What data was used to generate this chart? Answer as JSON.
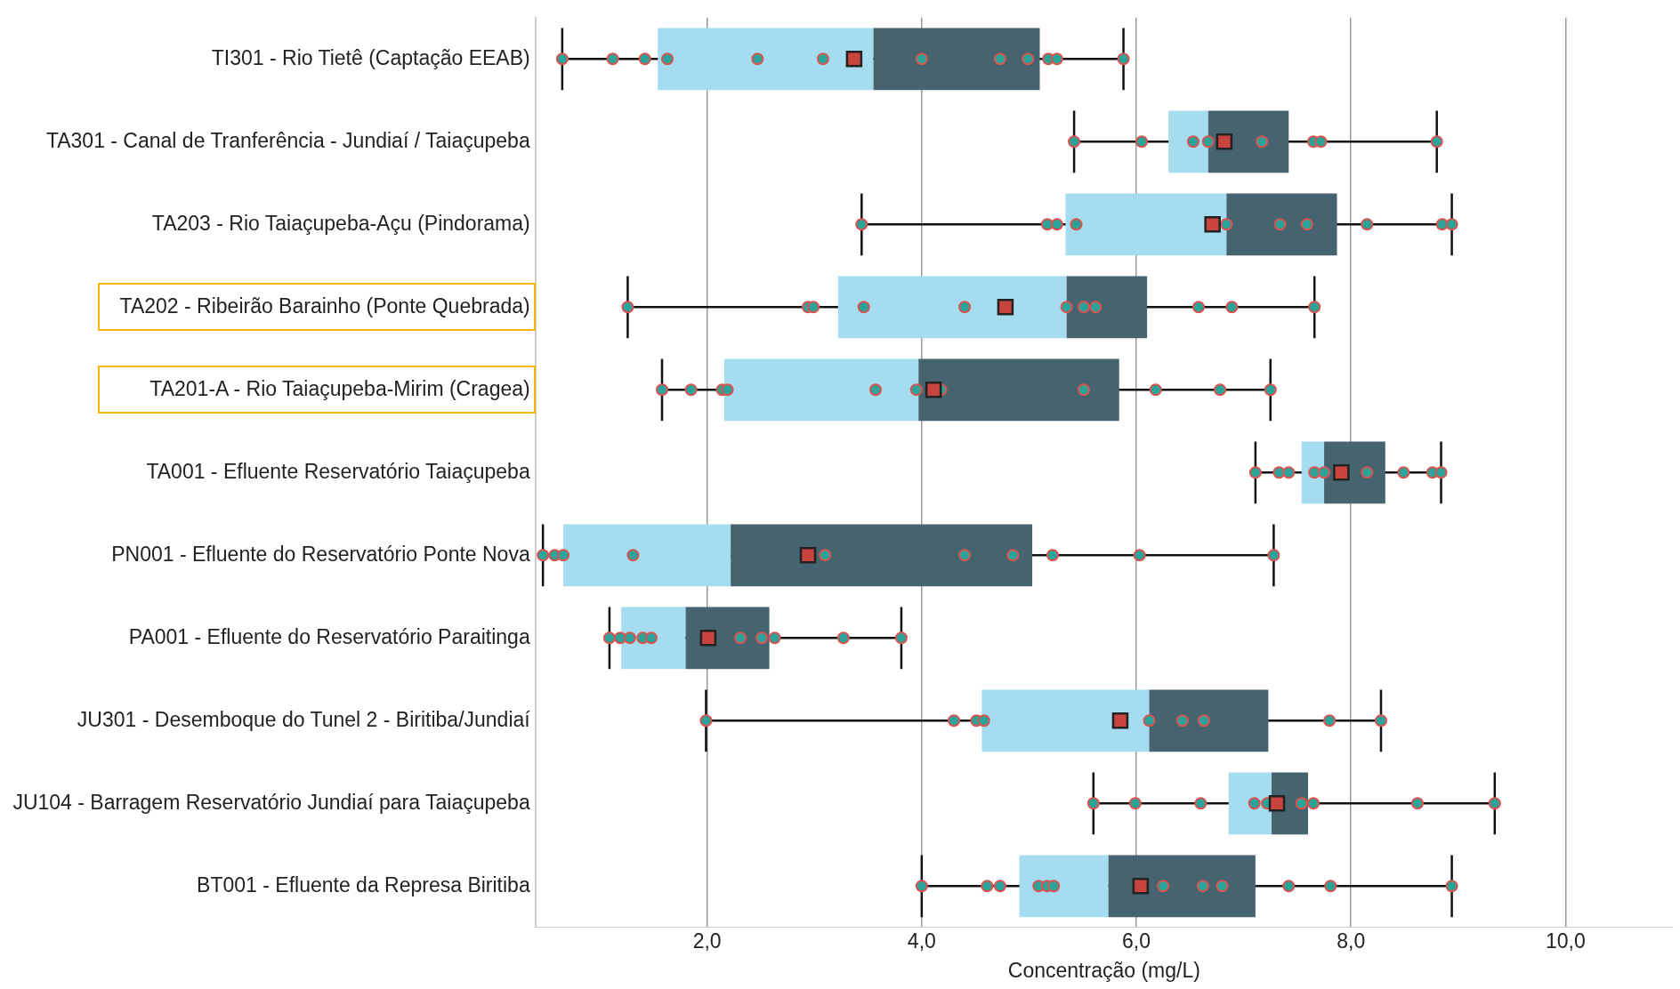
{
  "chart_data": {
    "type": "box",
    "orientation": "horizontal",
    "xlabel": "Concentração (mg/L)",
    "categories": [
      "TI301 - Rio Tietê (Captação EEAB)",
      "TA301 - Canal de Tranferência - Jundiaí / Taiaçupeba",
      "TA203 - Rio Taiaçupeba-Açu (Pindorama)",
      "TA202 - Ribeirão Barainho (Ponte Quebrada)",
      "TA201-A - Rio Taiaçupeba-Mirim (Cragea)",
      "TA001 - Efluente Reservatório Taiaçupeba",
      "PN001 - Efluente do Reservatório Ponte Nova",
      "PA001 - Efluente do Reservatório Paraitinga",
      "JU301 - Desemboque do Tunel 2 - Biritiba/Jundiaí",
      "JU104 - Barragem Reservatório Jundiaí para Taiaçupeba",
      "BT001 - Efluente da Represa Biritiba"
    ],
    "xlim": [
      0.4,
      11
    ],
    "xticks": [
      {
        "value": 2,
        "label": "2,0"
      },
      {
        "value": 4,
        "label": "4,0"
      },
      {
        "value": 6,
        "label": "6,0"
      },
      {
        "value": 8,
        "label": "8,0"
      },
      {
        "value": 10,
        "label": "10,0"
      }
    ],
    "grid": "x",
    "legend": false,
    "series": [
      {
        "type": "box",
        "color": "#a6dcef",
        "boxes": [
          {
            "low": 0.65,
            "q1": 1.54,
            "median": 3.55,
            "q3": 5.1,
            "high": 5.88,
            "mean": 3.37
          },
          {
            "low": 5.42,
            "q1": 6.3,
            "median": 6.67,
            "q3": 7.42,
            "high": 8.8,
            "mean": 6.82
          },
          {
            "low": 3.44,
            "q1": 5.34,
            "median": 6.84,
            "q3": 7.87,
            "high": 8.94,
            "mean": 6.71
          },
          {
            "low": 1.26,
            "q1": 3.22,
            "median": 5.35,
            "q3": 6.1,
            "high": 7.66,
            "mean": 4.78
          },
          {
            "low": 1.58,
            "q1": 2.16,
            "median": 3.97,
            "q3": 5.84,
            "high": 7.25,
            "mean": 4.11
          },
          {
            "low": 7.11,
            "q1": 7.54,
            "median": 7.75,
            "q3": 8.32,
            "high": 8.84,
            "mean": 7.91
          },
          {
            "low": 0.47,
            "q1": 0.66,
            "median": 2.22,
            "q3": 5.03,
            "high": 7.28,
            "mean": 2.94
          },
          {
            "low": 1.09,
            "q1": 1.2,
            "median": 1.8,
            "q3": 2.58,
            "high": 3.81,
            "mean": 2.01
          },
          {
            "low": 1.99,
            "q1": 4.56,
            "median": 6.12,
            "q3": 7.23,
            "high": 8.28,
            "mean": 5.85
          },
          {
            "low": 5.6,
            "q1": 6.86,
            "median": 7.26,
            "q3": 7.6,
            "high": 9.34,
            "mean": 7.31
          },
          {
            "low": 4.0,
            "q1": 4.91,
            "median": 5.74,
            "q3": 7.11,
            "high": 8.94,
            "mean": 6.04
          }
        ]
      },
      {
        "type": "scatter",
        "color": "#2aa39a",
        "x": [
          "TI301 - Rio Tietê (Captação EEAB)",
          "TI301 - Rio Tietê (Captação EEAB)",
          "TI301 - Rio Tietê (Captação EEAB)",
          "TI301 - Rio Tietê (Captação EEAB)",
          "TI301 - Rio Tietê (Captação EEAB)",
          "TI301 - Rio Tietê (Captação EEAB)",
          "TI301 - Rio Tietê (Captação EEAB)",
          "TI301 - Rio Tietê (Captação EEAB)",
          "TI301 - Rio Tietê (Captação EEAB)",
          "TI301 - Rio Tietê (Captação EEAB)",
          "TI301 - Rio Tietê (Captação EEAB)",
          "TI301 - Rio Tietê (Captação EEAB)",
          "TA301 - Canal de Tranferência - Jundiaí / Taiaçupeba",
          "TA301 - Canal de Tranferência - Jundiaí / Taiaçupeba",
          "TA301 - Canal de Tranferência - Jundiaí / Taiaçupeba",
          "TA301 - Canal de Tranferência - Jundiaí / Taiaçupeba",
          "TA301 - Canal de Tranferência - Jundiaí / Taiaçupeba",
          "TA301 - Canal de Tranferência - Jundiaí / Taiaçupeba",
          "TA301 - Canal de Tranferência - Jundiaí / Taiaçupeba",
          "TA301 - Canal de Tranferência - Jundiaí / Taiaçupeba",
          "TA203 - Rio Taiaçupeba-Açu (Pindorama)",
          "TA203 - Rio Taiaçupeba-Açu (Pindorama)",
          "TA203 - Rio Taiaçupeba-Açu (Pindorama)",
          "TA203 - Rio Taiaçupeba-Açu (Pindorama)",
          "TA203 - Rio Taiaçupeba-Açu (Pindorama)",
          "TA203 - Rio Taiaçupeba-Açu (Pindorama)",
          "TA203 - Rio Taiaçupeba-Açu (Pindorama)",
          "TA203 - Rio Taiaçupeba-Açu (Pindorama)",
          "TA203 - Rio Taiaçupeba-Açu (Pindorama)",
          "TA203 - Rio Taiaçupeba-Açu (Pindorama)",
          "TA202 - Ribeirão Barainho (Ponte Quebrada)",
          "TA202 - Ribeirão Barainho (Ponte Quebrada)",
          "TA202 - Ribeirão Barainho (Ponte Quebrada)",
          "TA202 - Ribeirão Barainho (Ponte Quebrada)",
          "TA202 - Ribeirão Barainho (Ponte Quebrada)",
          "TA202 - Ribeirão Barainho (Ponte Quebrada)",
          "TA202 - Ribeirão Barainho (Ponte Quebrada)",
          "TA202 - Ribeirão Barainho (Ponte Quebrada)",
          "TA202 - Ribeirão Barainho (Ponte Quebrada)",
          "TA202 - Ribeirão Barainho (Ponte Quebrada)",
          "TA202 - Ribeirão Barainho (Ponte Quebrada)",
          "TA201-A - Rio Taiaçupeba-Mirim (Cragea)",
          "TA201-A - Rio Taiaçupeba-Mirim (Cragea)",
          "TA201-A - Rio Taiaçupeba-Mirim (Cragea)",
          "TA201-A - Rio Taiaçupeba-Mirim (Cragea)",
          "TA201-A - Rio Taiaçupeba-Mirim (Cragea)",
          "TA201-A - Rio Taiaçupeba-Mirim (Cragea)",
          "TA201-A - Rio Taiaçupeba-Mirim (Cragea)",
          "TA201-A - Rio Taiaçupeba-Mirim (Cragea)",
          "TA201-A - Rio Taiaçupeba-Mirim (Cragea)",
          "TA201-A - Rio Taiaçupeba-Mirim (Cragea)",
          "TA201-A - Rio Taiaçupeba-Mirim (Cragea)",
          "TA001 - Efluente Reservatório Taiaçupeba",
          "TA001 - Efluente Reservatório Taiaçupeba",
          "TA001 - Efluente Reservatório Taiaçupeba",
          "TA001 - Efluente Reservatório Taiaçupeba",
          "TA001 - Efluente Reservatório Taiaçupeba",
          "TA001 - Efluente Reservatório Taiaçupeba",
          "TA001 - Efluente Reservatório Taiaçupeba",
          "TA001 - Efluente Reservatório Taiaçupeba",
          "TA001 - Efluente Reservatório Taiaçupeba",
          "PN001 - Efluente do Reservatório Ponte Nova",
          "PN001 - Efluente do Reservatório Ponte Nova",
          "PN001 - Efluente do Reservatório Ponte Nova",
          "PN001 - Efluente do Reservatório Ponte Nova",
          "PN001 - Efluente do Reservatório Ponte Nova",
          "PN001 - Efluente do Reservatório Ponte Nova",
          "PN001 - Efluente do Reservatório Ponte Nova",
          "PN001 - Efluente do Reservatório Ponte Nova",
          "PN001 - Efluente do Reservatório Ponte Nova",
          "PN001 - Efluente do Reservatório Ponte Nova",
          "PA001 - Efluente do Reservatório Paraitinga",
          "PA001 - Efluente do Reservatório Paraitinga",
          "PA001 - Efluente do Reservatório Paraitinga",
          "PA001 - Efluente do Reservatório Paraitinga",
          "PA001 - Efluente do Reservatório Paraitinga",
          "PA001 - Efluente do Reservatório Paraitinga",
          "PA001 - Efluente do Reservatório Paraitinga",
          "PA001 - Efluente do Reservatório Paraitinga",
          "PA001 - Efluente do Reservatório Paraitinga",
          "PA001 - Efluente do Reservatório Paraitinga",
          "JU301 - Desemboque do Tunel 2 - Biritiba/Jundiaí",
          "JU301 - Desemboque do Tunel 2 - Biritiba/Jundiaí",
          "JU301 - Desemboque do Tunel 2 - Biritiba/Jundiaí",
          "JU301 - Desemboque do Tunel 2 - Biritiba/Jundiaí",
          "JU301 - Desemboque do Tunel 2 - Biritiba/Jundiaí",
          "JU301 - Desemboque do Tunel 2 - Biritiba/Jundiaí",
          "JU301 - Desemboque do Tunel 2 - Biritiba/Jundiaí",
          "JU301 - Desemboque do Tunel 2 - Biritiba/Jundiaí",
          "JU301 - Desemboque do Tunel 2 - Biritiba/Jundiaí",
          "JU104 - Barragem Reservatório Jundiaí para Taiaçupeba",
          "JU104 - Barragem Reservatório Jundiaí para Taiaçupeba",
          "JU104 - Barragem Reservatório Jundiaí para Taiaçupeba",
          "JU104 - Barragem Reservatório Jundiaí para Taiaçupeba",
          "JU104 - Barragem Reservatório Jundiaí para Taiaçupeba",
          "JU104 - Barragem Reservatório Jundiaí para Taiaçupeba",
          "JU104 - Barragem Reservatório Jundiaí para Taiaçupeba",
          "JU104 - Barragem Reservatório Jundiaí para Taiaçupeba",
          "JU104 - Barragem Reservatório Jundiaí para Taiaçupeba",
          "BT001 - Efluente da Represa Biritiba",
          "BT001 - Efluente da Represa Biritiba",
          "BT001 - Efluente da Represa Biritiba",
          "BT001 - Efluente da Represa Biritiba",
          "BT001 - Efluente da Represa Biritiba",
          "BT001 - Efluente da Represa Biritiba",
          "BT001 - Efluente da Represa Biritiba",
          "BT001 - Efluente da Represa Biritiba",
          "BT001 - Efluente da Represa Biritiba",
          "BT001 - Efluente da Represa Biritiba",
          "BT001 - Efluente da Represa Biritiba",
          "BT001 - Efluente da Represa Biritiba"
        ],
        "values": [
          0.65,
          1.12,
          1.42,
          1.63,
          2.47,
          3.08,
          4.0,
          4.73,
          4.99,
          5.18,
          5.26,
          5.88,
          5.42,
          6.05,
          6.53,
          6.67,
          7.17,
          7.65,
          7.72,
          8.8,
          3.44,
          5.17,
          5.26,
          5.44,
          6.84,
          7.34,
          7.59,
          8.15,
          8.85,
          8.94,
          1.26,
          2.94,
          2.99,
          3.46,
          4.4,
          5.35,
          5.51,
          5.62,
          6.58,
          6.89,
          7.66,
          1.58,
          1.85,
          2.14,
          2.19,
          3.57,
          3.95,
          4.18,
          5.51,
          6.18,
          6.78,
          7.25,
          7.11,
          7.33,
          7.42,
          7.66,
          7.75,
          8.15,
          8.49,
          8.76,
          8.84,
          0.47,
          0.58,
          0.66,
          1.31,
          3.1,
          4.4,
          4.85,
          5.22,
          6.03,
          7.28,
          1.09,
          1.19,
          1.28,
          1.4,
          1.48,
          2.31,
          2.51,
          2.63,
          3.27,
          3.81,
          1.99,
          4.3,
          4.51,
          4.58,
          6.12,
          6.43,
          6.63,
          7.8,
          8.28,
          5.6,
          5.99,
          6.6,
          7.1,
          7.22,
          7.54,
          7.65,
          8.62,
          9.34,
          4.0,
          4.61,
          4.73,
          5.09,
          5.17,
          5.23,
          6.25,
          6.62,
          6.8,
          7.42,
          7.81,
          8.94
        ]
      }
    ]
  }
}
